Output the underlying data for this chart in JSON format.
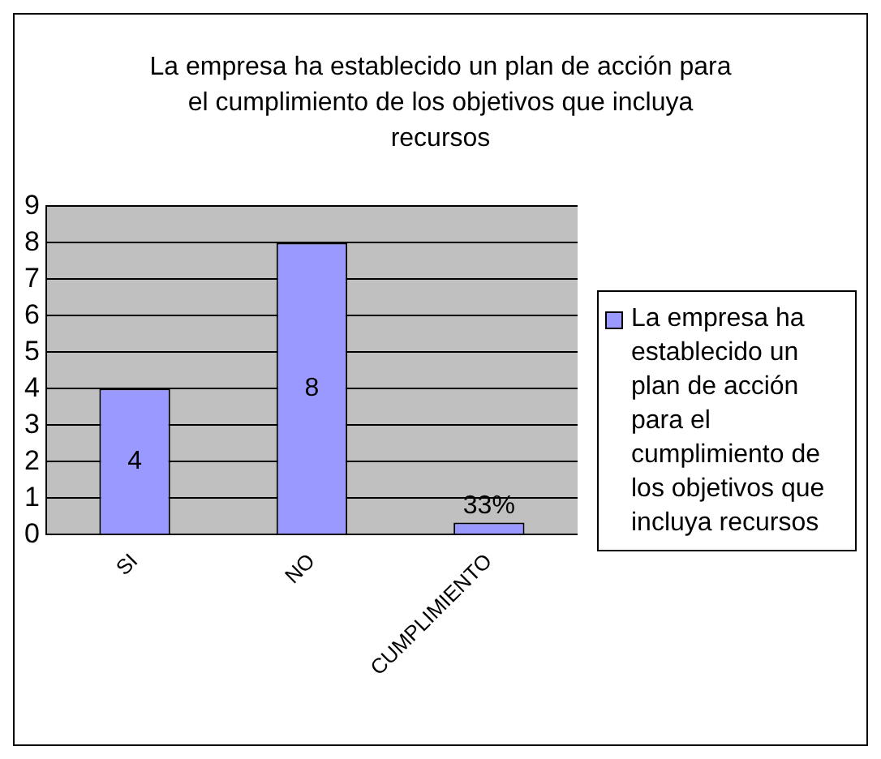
{
  "chart_data": {
    "type": "bar",
    "title": "La empresa ha establecido un plan de acción para el cumplimiento de los objetivos que incluya recursos",
    "categories": [
      "SI",
      "NO",
      "CUMPLIMIENTO"
    ],
    "series": [
      {
        "name": "La empresa ha establecido un plan de acción para el cumplimiento de los objetivos que incluya recursos",
        "color": "#9999ff",
        "values": [
          4,
          8,
          0.33
        ],
        "value_labels": [
          "4",
          "8",
          "33%"
        ]
      }
    ],
    "ylim": [
      0,
      9
    ],
    "yticks": [
      0,
      1,
      2,
      3,
      4,
      5,
      6,
      7,
      8,
      9
    ],
    "grid": "y",
    "legend": "right"
  }
}
